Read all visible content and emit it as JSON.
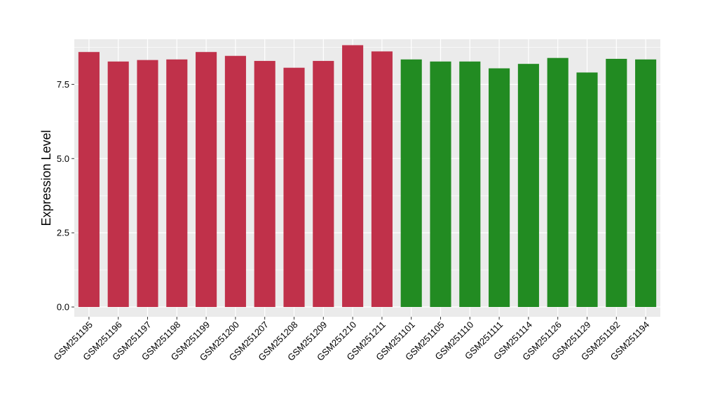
{
  "chart_data": {
    "type": "bar",
    "title": "",
    "xlabel": "",
    "ylabel": "Expression Level",
    "ylim": [
      -0.33,
      9.02
    ],
    "yticks": [
      0.0,
      2.5,
      5.0,
      7.5
    ],
    "ytick_labels": [
      "0.0",
      "2.5",
      "5.0",
      "7.5"
    ],
    "grid": true,
    "panel_background": "#EBEBEB",
    "gridline_color": "#FFFFFF",
    "categories": [
      "GSM251195",
      "GSM251196",
      "GSM251197",
      "GSM251198",
      "GSM251199",
      "GSM251200",
      "GSM251207",
      "GSM251208",
      "GSM251209",
      "GSM251210",
      "GSM251211",
      "GSM251101",
      "GSM251105",
      "GSM251110",
      "GSM251111",
      "GSM251114",
      "GSM251126",
      "GSM251129",
      "GSM251192",
      "GSM251194"
    ],
    "values": [
      8.59,
      8.27,
      8.32,
      8.34,
      8.59,
      8.46,
      8.29,
      8.06,
      8.29,
      8.82,
      8.61,
      8.34,
      8.27,
      8.27,
      8.04,
      8.19,
      8.39,
      7.9,
      8.36,
      8.34
    ],
    "bar_colors": [
      "#C0314A",
      "#C0314A",
      "#C0314A",
      "#C0314A",
      "#C0314A",
      "#C0314A",
      "#C0314A",
      "#C0314A",
      "#C0314A",
      "#C0314A",
      "#C0314A",
      "#228B22",
      "#228B22",
      "#228B22",
      "#228B22",
      "#228B22",
      "#228B22",
      "#228B22",
      "#228B22",
      "#228B22"
    ]
  }
}
